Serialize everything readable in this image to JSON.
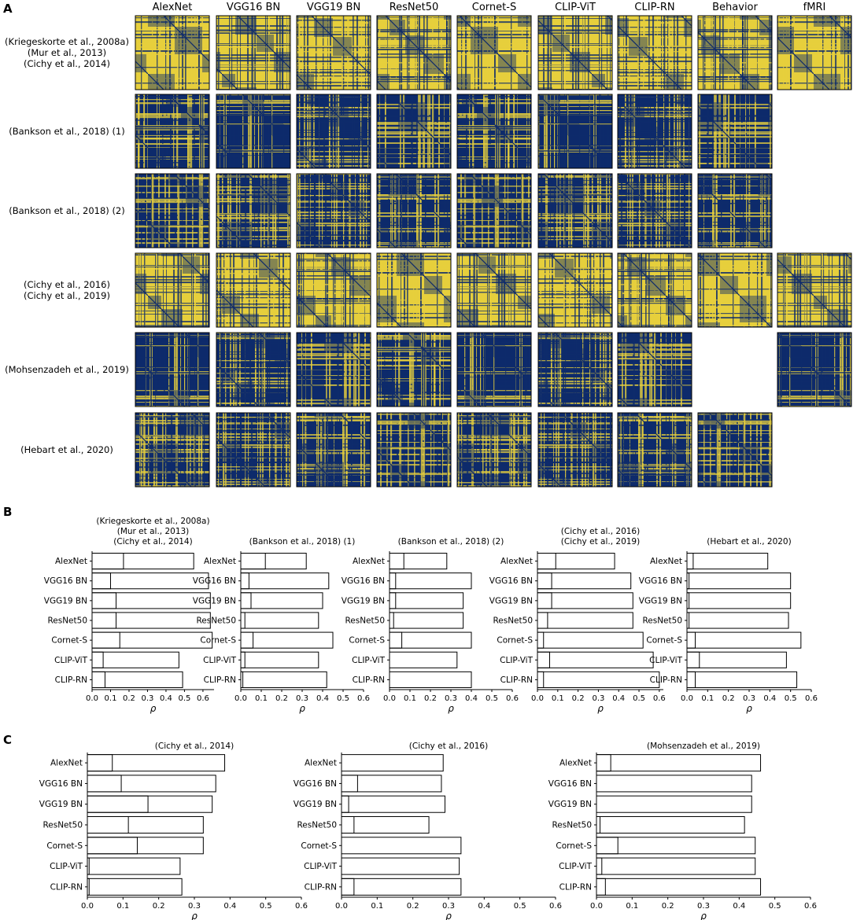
{
  "panels": {
    "a": "A",
    "b": "B",
    "c": "C"
  },
  "panel_a": {
    "model_headers": [
      "AlexNet",
      "VGG16 BN",
      "VGG19 BN",
      "ResNet50",
      "Cornet-S",
      "CLIP-ViT",
      "CLIP-RN",
      "Behavior",
      "fMRI"
    ],
    "dataset_rows": [
      {
        "label_lines": [
          "(Kriegeskorte et al., 2008a)",
          "(Mur et al., 2013)",
          "(Cichy et al., 2014)"
        ],
        "present": [
          1,
          1,
          1,
          1,
          1,
          1,
          1,
          1,
          1
        ]
      },
      {
        "label_lines": [
          "(Bankson et al., 2018) (1)"
        ],
        "present": [
          1,
          1,
          1,
          1,
          1,
          1,
          1,
          1,
          0
        ]
      },
      {
        "label_lines": [
          "(Bankson et al., 2018) (2)"
        ],
        "present": [
          1,
          1,
          1,
          1,
          1,
          1,
          1,
          1,
          0
        ]
      },
      {
        "label_lines": [
          "(Cichy et al., 2016)",
          "(Cichy et al., 2019)"
        ],
        "present": [
          1,
          1,
          1,
          1,
          1,
          1,
          1,
          1,
          1
        ]
      },
      {
        "label_lines": [
          "(Mohsenzadeh et al., 2019)"
        ],
        "present": [
          1,
          1,
          1,
          1,
          1,
          1,
          1,
          0,
          1
        ]
      },
      {
        "label_lines": [
          "(Hebart et al., 2020)"
        ],
        "present": [
          1,
          1,
          1,
          1,
          1,
          1,
          1,
          1,
          0
        ]
      }
    ],
    "colors": {
      "low": "#0d2a6b",
      "high": "#e6cf3c"
    }
  },
  "chart_data": [
    {
      "panel": "B",
      "type": "bar",
      "orientation": "horizontal",
      "title_lines": [
        "(Kriegeskorte et al., 2008a)",
        "(Mur et al., 2013)",
        "(Cichy et al., 2014)"
      ],
      "categories": [
        "AlexNet",
        "VGG16 BN",
        "VGG19 BN",
        "ResNet50",
        "Cornet-S",
        "CLIP-ViT",
        "CLIP-RN"
      ],
      "series": [
        {
          "values": [
            0.55,
            0.63,
            0.64,
            0.64,
            0.65,
            0.47,
            0.49
          ]
        },
        {
          "values": [
            0.17,
            0.1,
            0.13,
            0.13,
            0.15,
            0.06,
            0.07
          ]
        }
      ],
      "xlabel": "ρ",
      "xlim": [
        0.0,
        0.66
      ],
      "xticks": [
        "0.0",
        "0.1",
        "0.2",
        "0.3",
        "0.4",
        "0.5",
        "0.6"
      ],
      "xtick_values": [
        0.0,
        0.1,
        0.2,
        0.3,
        0.4,
        0.5,
        0.6
      ]
    },
    {
      "panel": "B",
      "type": "bar",
      "orientation": "horizontal",
      "title_lines": [
        "(Bankson et al., 2018) (1)"
      ],
      "categories": [
        "AlexNet",
        "VGG16 BN",
        "VGG19 BN",
        "ResNet50",
        "Cornet-S",
        "CLIP-ViT",
        "CLIP-RN"
      ],
      "series": [
        {
          "values": [
            0.32,
            0.43,
            0.4,
            0.38,
            0.45,
            0.38,
            0.42
          ]
        },
        {
          "values": [
            0.12,
            0.04,
            0.05,
            0.02,
            0.06,
            0.02,
            0.01
          ]
        }
      ],
      "xlabel": "ρ",
      "xlim": [
        0.0,
        0.6
      ],
      "xticks": [
        "0.0",
        "0.1",
        "0.2",
        "0.3",
        "0.4",
        "0.5",
        "0.6"
      ],
      "xtick_values": [
        0.0,
        0.1,
        0.2,
        0.3,
        0.4,
        0.5,
        0.6
      ]
    },
    {
      "panel": "B",
      "type": "bar",
      "orientation": "horizontal",
      "title_lines": [
        "(Bankson et al., 2018) (2)"
      ],
      "categories": [
        "AlexNet",
        "VGG16 BN",
        "VGG19 BN",
        "ResNet50",
        "Cornet-S",
        "CLIP-ViT",
        "CLIP-RN"
      ],
      "series": [
        {
          "values": [
            0.28,
            0.4,
            0.36,
            0.36,
            0.4,
            0.33,
            0.4
          ]
        },
        {
          "values": [
            0.07,
            0.03,
            0.03,
            0.02,
            0.06,
            0.0,
            0.0
          ]
        }
      ],
      "xlabel": "ρ",
      "xlim": [
        0.0,
        0.6
      ],
      "xticks": [
        "0.0",
        "0.1",
        "0.2",
        "0.3",
        "0.4",
        "0.5",
        "0.6"
      ],
      "xtick_values": [
        0.0,
        0.1,
        0.2,
        0.3,
        0.4,
        0.5,
        0.6
      ]
    },
    {
      "panel": "B",
      "type": "bar",
      "orientation": "horizontal",
      "title_lines": [
        "(Cichy et al., 2016)",
        "(Cichy et al., 2019)"
      ],
      "categories": [
        "AlexNet",
        "VGG16 BN",
        "VGG19 BN",
        "ResNet50",
        "Cornet-S",
        "CLIP-ViT",
        "CLIP-RN"
      ],
      "series": [
        {
          "values": [
            0.38,
            0.46,
            0.47,
            0.47,
            0.52,
            0.57,
            0.6
          ]
        },
        {
          "values": [
            0.09,
            0.07,
            0.07,
            0.05,
            0.03,
            0.06,
            0.03
          ]
        }
      ],
      "xlabel": "ρ",
      "xlim": [
        0.0,
        0.62
      ],
      "xticks": [
        "0.0",
        "0.1",
        "0.2",
        "0.3",
        "0.4",
        "0.5",
        "0.6"
      ],
      "xtick_values": [
        0.0,
        0.1,
        0.2,
        0.3,
        0.4,
        0.5,
        0.6
      ]
    },
    {
      "panel": "B",
      "type": "bar",
      "orientation": "horizontal",
      "title_lines": [
        "(Hebart et al., 2020)"
      ],
      "categories": [
        "AlexNet",
        "VGG16 BN",
        "VGG19 BN",
        "ResNet50",
        "Cornet-S",
        "CLIP-ViT",
        "CLIP-RN"
      ],
      "series": [
        {
          "values": [
            0.39,
            0.5,
            0.5,
            0.49,
            0.55,
            0.48,
            0.53
          ]
        },
        {
          "values": [
            0.03,
            0.01,
            0.01,
            0.01,
            0.04,
            0.06,
            0.04
          ]
        }
      ],
      "xlabel": "ρ",
      "xlim": [
        0.0,
        0.6
      ],
      "xticks": [
        "0.0",
        "0.1",
        "0.2",
        "0.3",
        "0.4",
        "0.5",
        "0.6"
      ],
      "xtick_values": [
        0.0,
        0.1,
        0.2,
        0.3,
        0.4,
        0.5,
        0.6
      ]
    },
    {
      "panel": "C",
      "type": "bar",
      "orientation": "horizontal",
      "title_lines": [
        "(Cichy et al., 2014)"
      ],
      "categories": [
        "AlexNet",
        "VGG16 BN",
        "VGG19 BN",
        "ResNet50",
        "Cornet-S",
        "CLIP-ViT",
        "CLIP-RN"
      ],
      "series": [
        {
          "values": [
            0.385,
            0.36,
            0.35,
            0.325,
            0.325,
            0.26,
            0.265
          ]
        },
        {
          "values": [
            0.07,
            0.095,
            0.17,
            0.115,
            0.14,
            0.005,
            0.005
          ]
        }
      ],
      "xlabel": "ρ",
      "xlim": [
        0.0,
        0.6
      ],
      "xticks": [
        "0.0",
        "0.1",
        "0.2",
        "0.3",
        "0.4",
        "0.5",
        "0.6"
      ],
      "xtick_values": [
        0.0,
        0.1,
        0.2,
        0.3,
        0.4,
        0.5,
        0.6
      ]
    },
    {
      "panel": "C",
      "type": "bar",
      "orientation": "horizontal",
      "title_lines": [
        "(Cichy et al., 2016)"
      ],
      "categories": [
        "AlexNet",
        "VGG16 BN",
        "VGG19 BN",
        "ResNet50",
        "Cornet-S",
        "CLIP-ViT",
        "CLIP-RN"
      ],
      "series": [
        {
          "values": [
            0.285,
            0.28,
            0.29,
            0.245,
            0.335,
            0.33,
            0.335
          ]
        },
        {
          "values": [
            0.0,
            0.045,
            0.02,
            0.035,
            0.0,
            0.0,
            0.035
          ]
        }
      ],
      "xlabel": "ρ",
      "xlim": [
        0.0,
        0.6
      ],
      "xticks": [
        "0.0",
        "0.1",
        "0.2",
        "0.3",
        "0.4",
        "0.5",
        "0.6"
      ],
      "xtick_values": [
        0.0,
        0.1,
        0.2,
        0.3,
        0.4,
        0.5,
        0.6
      ]
    },
    {
      "panel": "C",
      "type": "bar",
      "orientation": "horizontal",
      "title_lines": [
        "(Mohsenzadeh et al., 2019)"
      ],
      "categories": [
        "AlexNet",
        "VGG16 BN",
        "VGG19 BN",
        "ResNet50",
        "Cornet-S",
        "CLIP-ViT",
        "CLIP-RN"
      ],
      "series": [
        {
          "values": [
            0.46,
            0.435,
            0.435,
            0.415,
            0.445,
            0.445,
            0.46
          ]
        },
        {
          "values": [
            0.04,
            0.0,
            0.0,
            0.01,
            0.06,
            0.015,
            0.025
          ]
        }
      ],
      "xlabel": "ρ",
      "xlim": [
        0.0,
        0.6
      ],
      "xticks": [
        "0.0",
        "0.1",
        "0.2",
        "0.3",
        "0.4",
        "0.5",
        "0.6"
      ],
      "xtick_values": [
        0.0,
        0.1,
        0.2,
        0.3,
        0.4,
        0.5,
        0.6
      ]
    }
  ]
}
